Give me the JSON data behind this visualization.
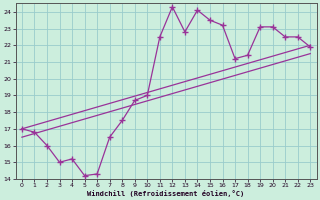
{
  "xlabel": "Windchill (Refroidissement éolien,°C)",
  "bg_color": "#cceedd",
  "line_color": "#993399",
  "grid_color": "#99cccc",
  "xlim": [
    -0.5,
    23.5
  ],
  "ylim": [
    14,
    24.5
  ],
  "yticks": [
    14,
    15,
    16,
    17,
    18,
    19,
    20,
    21,
    22,
    23,
    24
  ],
  "xticks": [
    0,
    1,
    2,
    3,
    4,
    5,
    6,
    7,
    8,
    9,
    10,
    11,
    12,
    13,
    14,
    15,
    16,
    17,
    18,
    19,
    20,
    21,
    22,
    23
  ],
  "line1_x": [
    0,
    1,
    2,
    3,
    4,
    5,
    6,
    7,
    8,
    9,
    10,
    11,
    12,
    13,
    14,
    15,
    16,
    17,
    18,
    19,
    20,
    21,
    22,
    23
  ],
  "line1_y": [
    17.0,
    16.8,
    16.0,
    15.0,
    15.2,
    14.2,
    14.3,
    16.5,
    17.5,
    18.7,
    19.0,
    22.5,
    24.3,
    22.8,
    24.1,
    23.5,
    23.2,
    21.2,
    21.4,
    23.1,
    23.1,
    22.5,
    22.5,
    21.9
  ],
  "line2_x": [
    0,
    23
  ],
  "line2_y": [
    17.0,
    22.0
  ],
  "line3_x": [
    0,
    23
  ],
  "line3_y": [
    16.5,
    21.5
  ],
  "figsize": [
    3.2,
    2.0
  ],
  "dpi": 100
}
